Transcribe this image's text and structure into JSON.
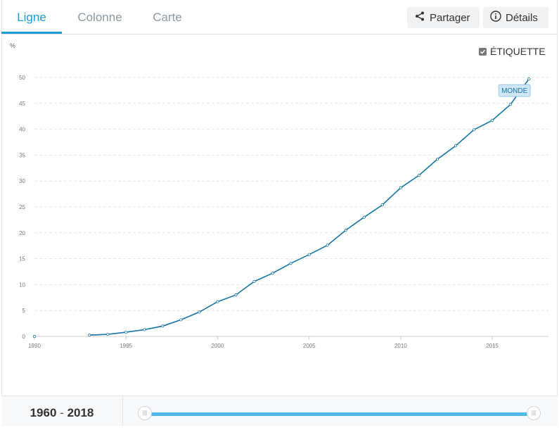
{
  "tabs": [
    {
      "label": "Ligne"
    },
    {
      "label": "Colonne"
    },
    {
      "label": "Carte"
    }
  ],
  "actions": {
    "share_label": "Partager",
    "details_label": "Détails"
  },
  "label_toggle": {
    "label": "ÉTIQUETTE",
    "checked": true
  },
  "colors": {
    "accent": "#1a9ad6",
    "series": "#1575a8",
    "label_bg": "#cfe6f5"
  },
  "range": {
    "start": "1960",
    "end": "2018",
    "separator": "-"
  },
  "chart_data": {
    "type": "line",
    "title": "",
    "xlabel": "",
    "ylabel": "%",
    "xlim": [
      1990,
      2017.3
    ],
    "ylim": [
      0,
      50
    ],
    "x_ticks": [
      1990,
      1995,
      2000,
      2005,
      2010,
      2015
    ],
    "y_ticks": [
      0,
      5,
      10,
      15,
      20,
      25,
      30,
      35,
      40,
      45,
      50
    ],
    "grid": true,
    "series": [
      {
        "name": "MONDE",
        "points": [
          [
            1990,
            0.0
          ],
          [
            1993,
            0.25
          ],
          [
            1994,
            0.4
          ],
          [
            1995,
            0.8
          ],
          [
            1996,
            1.3
          ],
          [
            1997,
            2.0
          ],
          [
            1998,
            3.2
          ],
          [
            1999,
            4.7
          ],
          [
            2000,
            6.7
          ],
          [
            2001,
            8.0
          ],
          [
            2002,
            10.6
          ],
          [
            2003,
            12.2
          ],
          [
            2004,
            14.1
          ],
          [
            2005,
            15.8
          ],
          [
            2006,
            17.6
          ],
          [
            2007,
            20.5
          ],
          [
            2008,
            23.0
          ],
          [
            2009,
            25.4
          ],
          [
            2010,
            28.7
          ],
          [
            2011,
            31.1
          ],
          [
            2012,
            34.2
          ],
          [
            2013,
            36.8
          ],
          [
            2014,
            39.9
          ],
          [
            2015,
            41.7
          ],
          [
            2016,
            44.8
          ],
          [
            2017,
            49.7
          ]
        ]
      }
    ]
  }
}
